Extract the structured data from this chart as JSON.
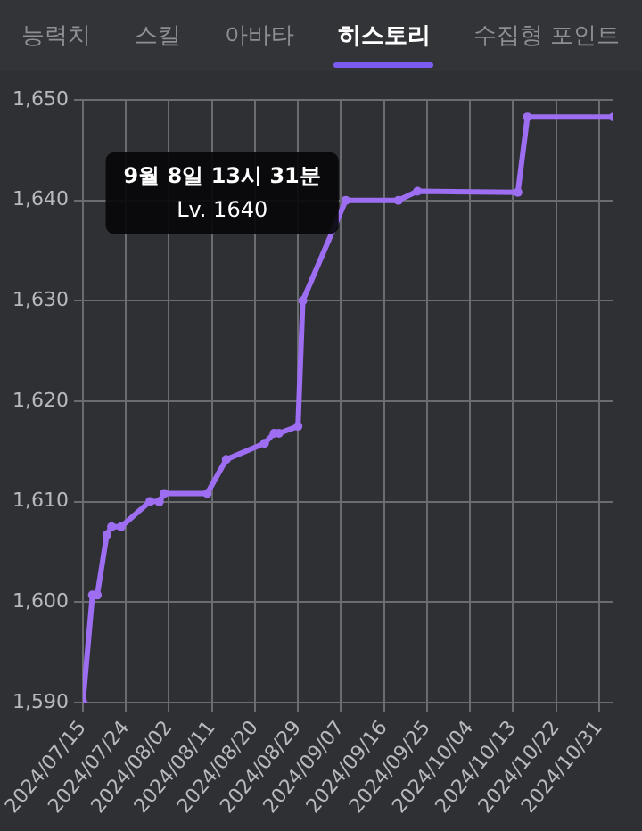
{
  "chart_data": {
    "type": "line",
    "annotations": [
      "능력치",
      "스킬",
      "아바타",
      "히스토리",
      "수집형 포인트",
      {
        "text": "9월 8일 13시 31분\nLv. 1640",
        "x": "2024-09-08",
        "y": 1640
      }
    ],
    "x": [
      "2024-07-15",
      "2024-07-17",
      "2024-07-18",
      "2024-07-20",
      "2024-07-21",
      "2024-07-23",
      "2024-07-29",
      "2024-07-31",
      "2024-08-01",
      "2024-08-10",
      "2024-08-14",
      "2024-08-22",
      "2024-08-24",
      "2024-08-25",
      "2024-08-29",
      "2024-08-30",
      "2024-09-08",
      "2024-09-19",
      "2024-09-23",
      "2024-10-14",
      "2024-10-16",
      "2024-11-03"
    ],
    "series": [
      {
        "color": "#9d6df2",
        "values": [
          1590,
          1600.7,
          1600.7,
          1606.7,
          1607.5,
          1607.5,
          1610,
          1610,
          1610.8,
          1610.8,
          1614.2,
          1615.8,
          1616.8,
          1616.8,
          1617.5,
          1630,
          1640,
          1640,
          1640.9,
          1640.8,
          1648.3,
          1648.3
        ]
      }
    ],
    "xlim": [
      "2024-07-15",
      "2024-11-03"
    ],
    "xticks": [
      {
        "value": "2024-07-15",
        "label": "2024/07/15"
      },
      {
        "value": "2024-07-24",
        "label": "2024/07/24"
      },
      {
        "value": "2024-08-02",
        "label": "2024/08/02"
      },
      {
        "value": "2024-08-11",
        "label": "2024/08/11"
      },
      {
        "value": "2024-08-20",
        "label": "2024/08/20"
      },
      {
        "value": "2024-08-29",
        "label": "2024/08/29"
      },
      {
        "value": "2024-09-07",
        "label": "2024/09/07"
      },
      {
        "value": "2024-09-16",
        "label": "2024/09/16"
      },
      {
        "value": "2024-09-25",
        "label": "2024/09/25"
      },
      {
        "value": "2024-10-04",
        "label": "2024/10/04"
      },
      {
        "value": "2024-10-13",
        "label": "2024/10/13"
      },
      {
        "value": "2024-10-22",
        "label": "2024/10/22"
      },
      {
        "value": "2024-10-31",
        "label": "2024/10/31"
      }
    ],
    "ylim": [
      1590,
      1650
    ],
    "yticks": [
      {
        "value": 1590,
        "label": "1,590"
      },
      {
        "value": 1600,
        "label": "1,600"
      },
      {
        "value": 1610,
        "label": "1,610"
      },
      {
        "value": 1620,
        "label": "1,620"
      },
      {
        "value": 1630,
        "label": "1,630"
      },
      {
        "value": 1640,
        "label": "1,640"
      },
      {
        "value": 1650,
        "label": "1,650"
      }
    ],
    "grid": true,
    "legend": false,
    "marker": "circle",
    "line_style": "solid"
  }
}
